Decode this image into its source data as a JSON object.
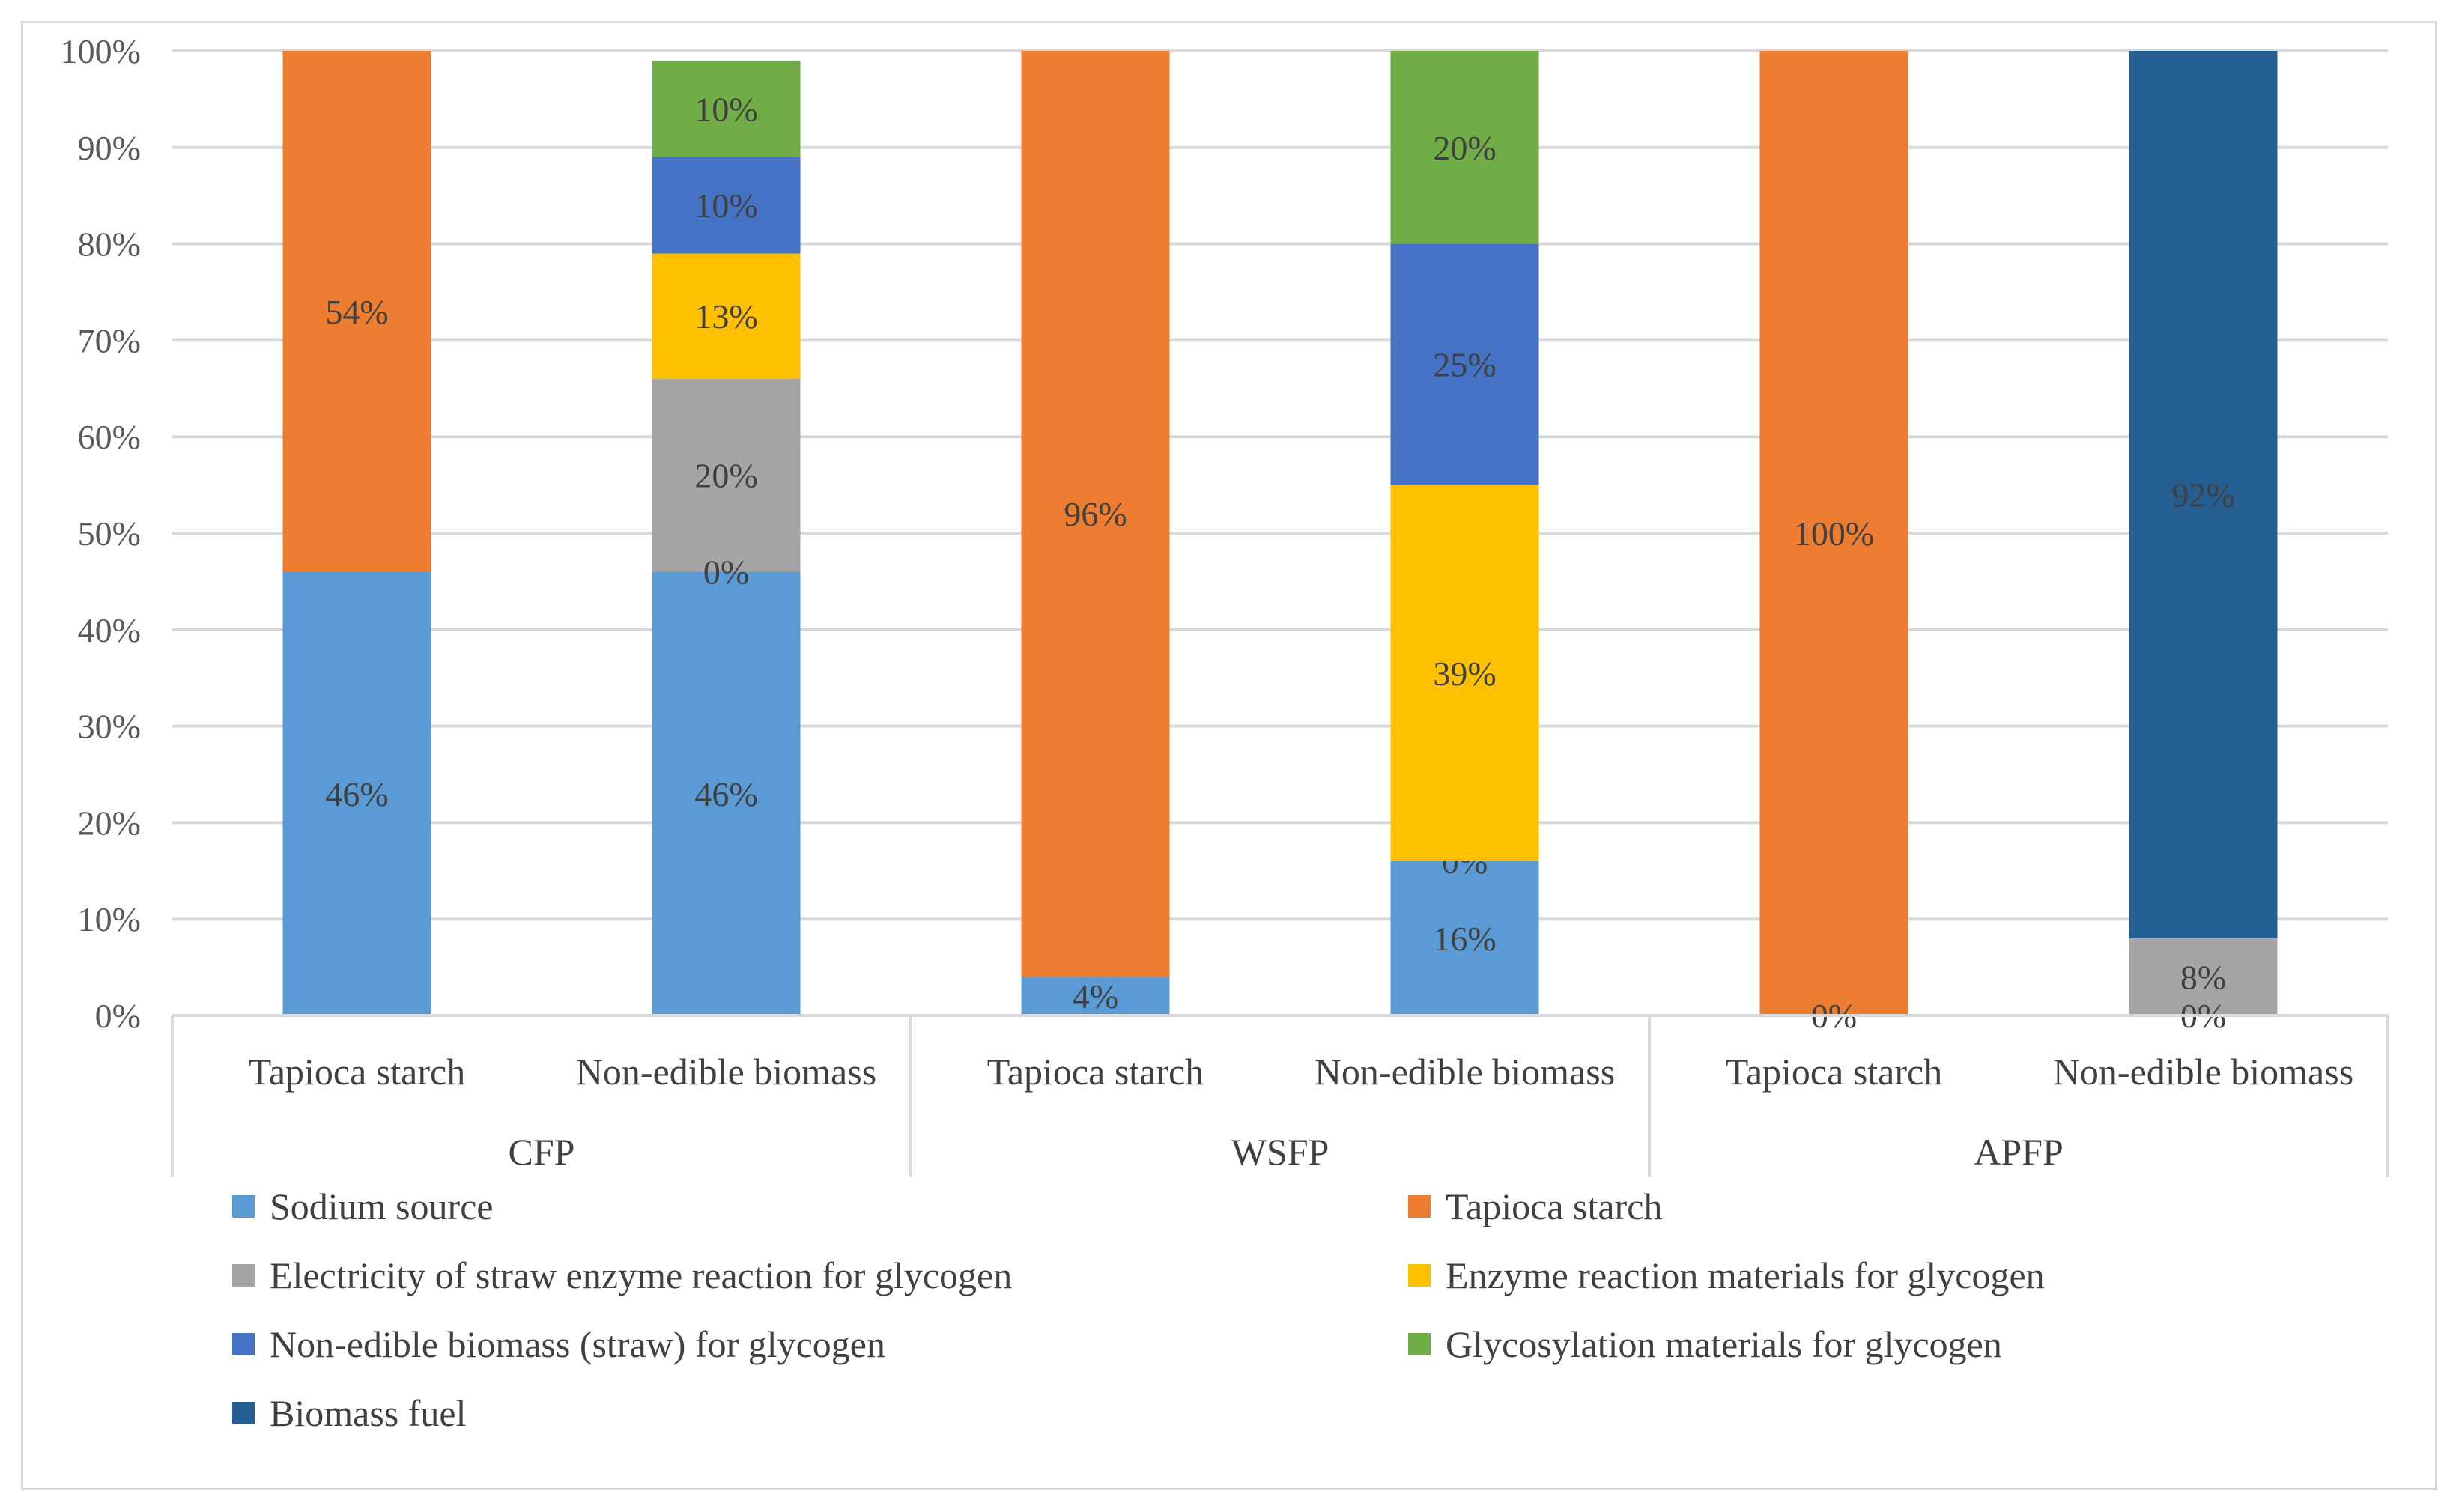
{
  "chart_data": {
    "type": "bar",
    "stacked": true,
    "percent_stacked": true,
    "title": "",
    "xlabel": "",
    "ylabel": "",
    "ylim": [
      0,
      100
    ],
    "yticks": [
      "0%",
      "10%",
      "20%",
      "30%",
      "40%",
      "50%",
      "60%",
      "70%",
      "80%",
      "90%",
      "100%"
    ],
    "groups": [
      "CFP",
      "WSFP",
      "APFP"
    ],
    "categories": [
      "Tapioca starch",
      "Non-edible biomass",
      "Tapioca starch",
      "Non-edible biomass",
      "Tapioca starch",
      "Non-edible biomass"
    ],
    "series": [
      {
        "name": "Sodium source",
        "color": "#5b9bd5",
        "values": [
          46,
          46,
          4,
          16,
          null,
          null
        ],
        "labels": [
          "46%",
          "46%",
          "4%",
          "16%",
          null,
          null
        ]
      },
      {
        "name": "Electricity of straw enzyme reaction for glycogen",
        "color": "#a5a5a5",
        "values": [
          null,
          20,
          null,
          0,
          null,
          8
        ],
        "labels": [
          null,
          "20%",
          null,
          "0%",
          null,
          "8%"
        ]
      },
      {
        "name": "Tapioca starch",
        "color": "#ed7d31",
        "values": [
          54,
          null,
          96,
          null,
          100,
          null
        ],
        "labels": [
          "54%",
          null,
          "96%",
          null,
          "100%",
          null
        ]
      },
      {
        "name": "Enzyme reaction materials for glycogen",
        "color": "#ffc000",
        "values": [
          null,
          13,
          null,
          39,
          null,
          null
        ],
        "labels": [
          null,
          "13%",
          null,
          "39%",
          null,
          null
        ]
      },
      {
        "name": "Non-edible biomass (straw) for glycogen",
        "color": "#4472c4",
        "values": [
          null,
          10,
          null,
          25,
          null,
          null
        ],
        "labels": [
          null,
          "10%",
          null,
          "25%",
          null,
          null
        ]
      },
      {
        "name": "Glycosylation materials for glycogen",
        "color": "#70ad47",
        "values": [
          null,
          10,
          null,
          20,
          null,
          null
        ],
        "labels": [
          null,
          "10%",
          null,
          "20%",
          null,
          null
        ]
      },
      {
        "name": "Biomass fuel",
        "color": "#255e91",
        "values": [
          null,
          null,
          null,
          null,
          null,
          92
        ],
        "labels": [
          null,
          null,
          null,
          null,
          null,
          "92%"
        ]
      }
    ],
    "extra_labels": [
      {
        "bar": 1,
        "text": "0%",
        "at_value": 46
      },
      {
        "bar": 4,
        "text": "0%",
        "at_value": 0
      },
      {
        "bar": 5,
        "text": "0%",
        "at_value": 0
      }
    ],
    "legend": {
      "position": "bottom",
      "order": [
        "Sodium source",
        "Tapioca starch",
        "Electricity of straw enzyme reaction for glycogen",
        "Enzyme reaction materials for glycogen",
        "Non-edible biomass (straw) for glycogen",
        "Glycosylation materials for glycogen",
        "Biomass fuel"
      ]
    },
    "grid": true
  }
}
